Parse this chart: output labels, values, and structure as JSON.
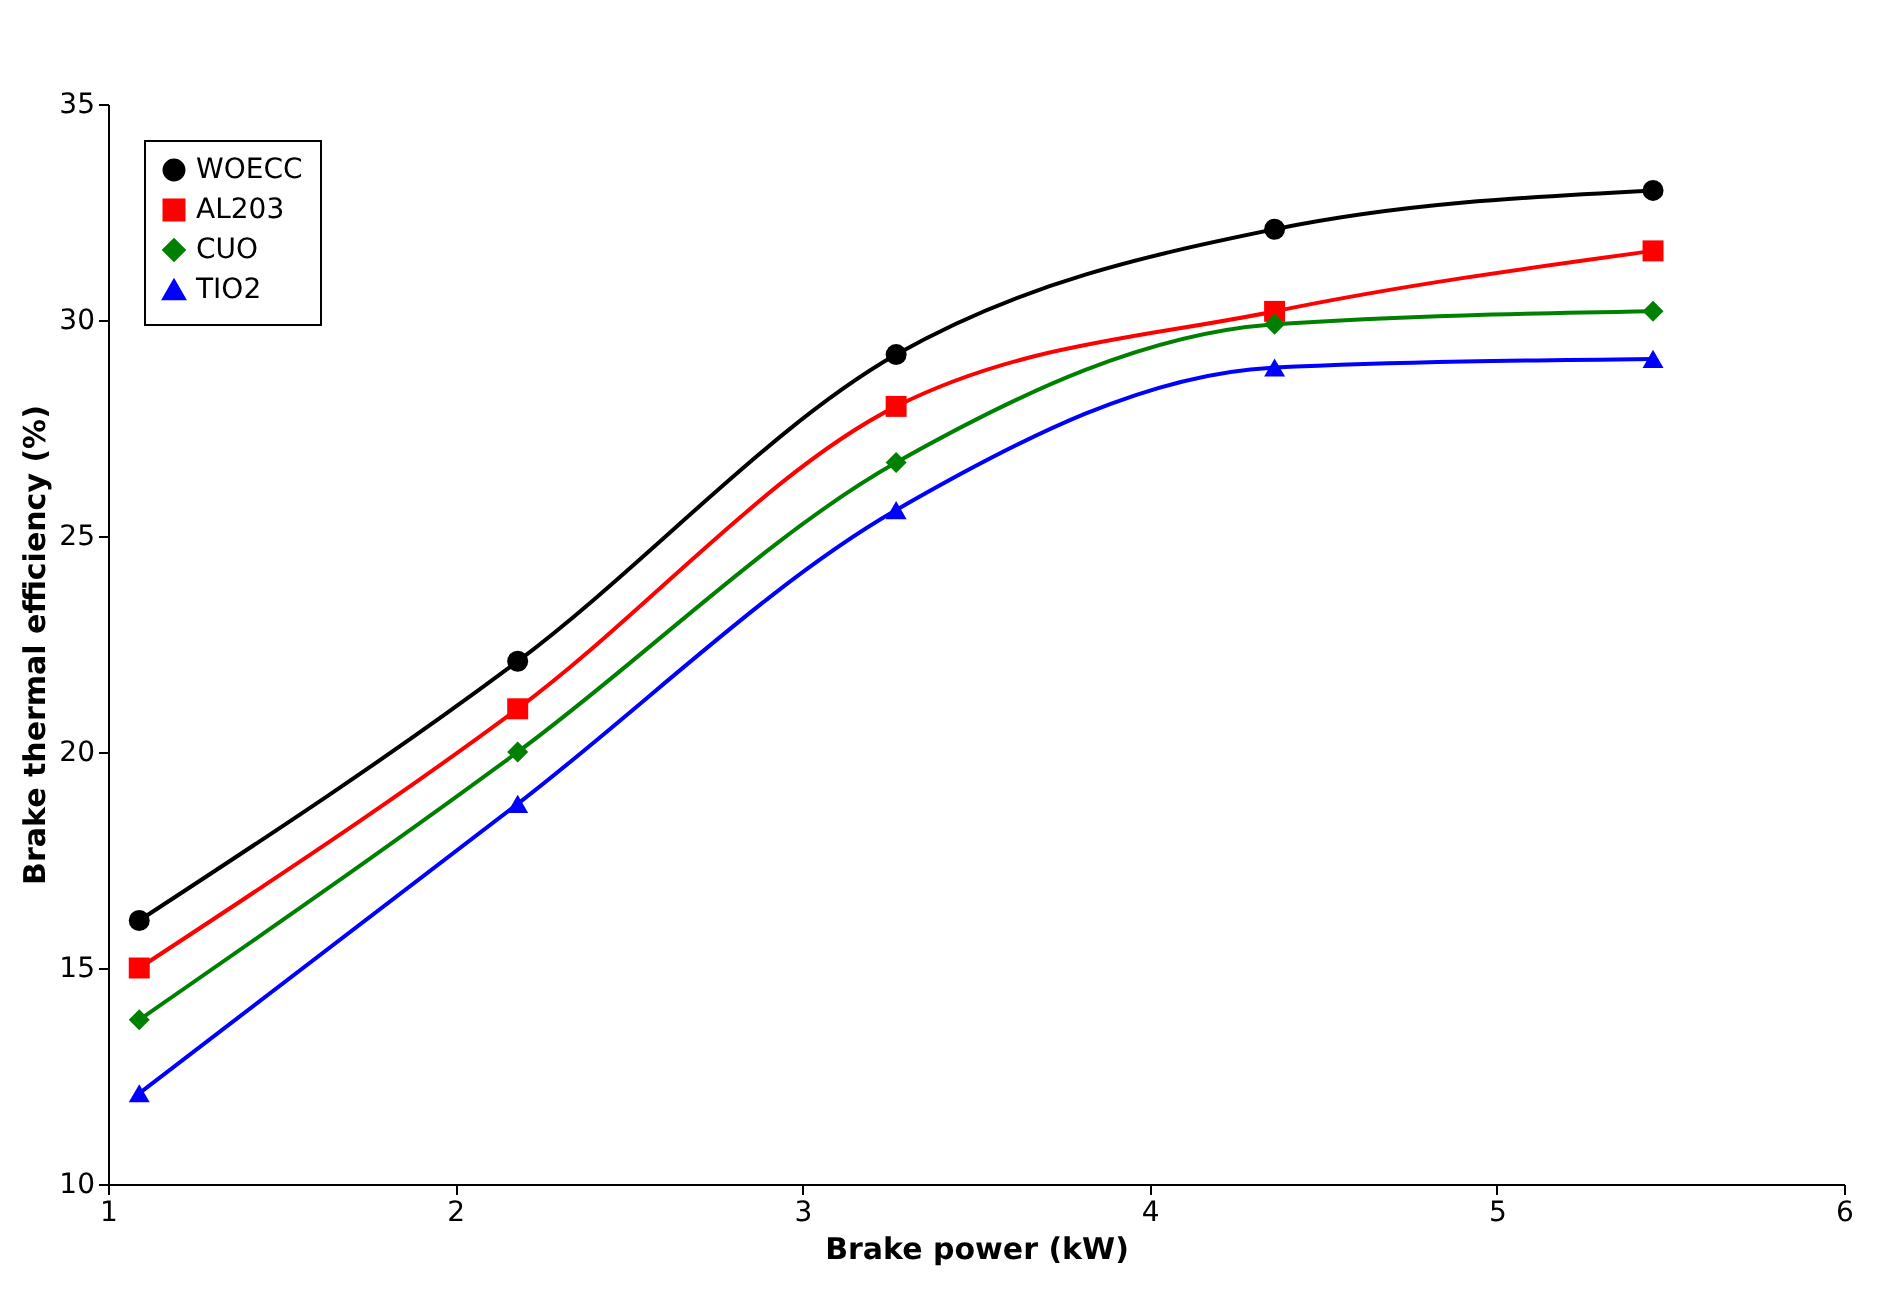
{
  "chart_data": {
    "type": "line",
    "xlabel": "Brake power (kW)",
    "ylabel": "Brake thermal efficiency (%)",
    "x": [
      1.09,
      2.18,
      3.27,
      4.36,
      5.45
    ],
    "xlim": [
      1,
      6
    ],
    "xticks": [
      1,
      2,
      3,
      4,
      5,
      6
    ],
    "ylim": [
      10,
      35
    ],
    "yticks": [
      10,
      15,
      20,
      25,
      30,
      35
    ],
    "grid": false,
    "legend": "top left",
    "line_style": "solid",
    "series": [
      {
        "name": "WOECC",
        "color": "#000000",
        "marker": "circle",
        "values": [
          16.1,
          22.1,
          29.2,
          32.1,
          33.0
        ]
      },
      {
        "name": "AL203",
        "color": "#ff0000",
        "marker": "square",
        "values": [
          15.0,
          21.0,
          28.0,
          30.2,
          31.6
        ]
      },
      {
        "name": "CUO",
        "color": "#008000",
        "marker": "diamond",
        "values": [
          13.8,
          20.0,
          26.7,
          29.9,
          30.2
        ]
      },
      {
        "name": "TIO2",
        "color": "#0000ff",
        "marker": "triangle",
        "values": [
          12.1,
          18.8,
          25.6,
          28.9,
          29.1
        ]
      }
    ]
  }
}
